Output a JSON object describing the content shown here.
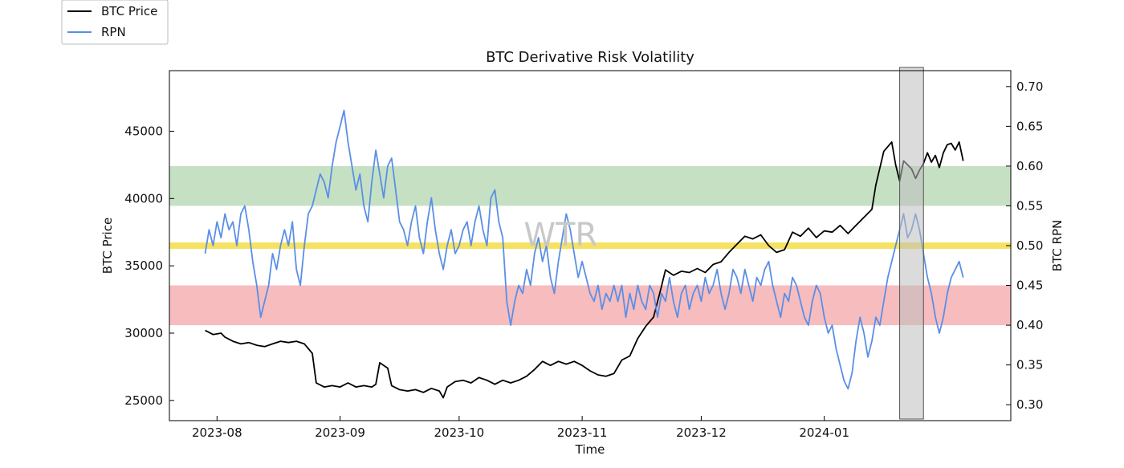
{
  "chart_data": {
    "type": "line",
    "title": "BTC Derivative Risk Volatility",
    "xlabel": "Time",
    "ylabel_left": "BTC Price",
    "ylabel_right": "BTC RPN",
    "watermark": "WTR",
    "x_ticks": [
      "2023-08",
      "2023-09",
      "2023-10",
      "2023-11",
      "2023-12",
      "2024-01"
    ],
    "x_range_days": [
      -12,
      200
    ],
    "ylim_left": [
      23500,
      49500
    ],
    "ylim_right": [
      0.28,
      0.72
    ],
    "left_ticks": [
      25000,
      30000,
      35000,
      40000,
      45000
    ],
    "right_ticks": [
      "0.30",
      "0.35",
      "0.40",
      "0.45",
      "0.50",
      "0.55",
      "0.60",
      "0.65",
      "0.70"
    ],
    "bands": [
      {
        "name": "high-risk-zone",
        "ymin": 0.55,
        "ymax": 0.6,
        "color": "#aed3ab",
        "opacity": 0.7
      },
      {
        "name": "neutral-line",
        "ymin": 0.496,
        "ymax": 0.504,
        "color": "#f2d82e",
        "opacity": 0.75
      },
      {
        "name": "low-risk-zone",
        "ymin": 0.4,
        "ymax": 0.45,
        "color": "#f2a0a2",
        "opacity": 0.7
      }
    ],
    "highlight_days": [
      172,
      178
    ],
    "legend": [
      {
        "label": "BTC Price",
        "color": "#000000"
      },
      {
        "label": "RPN",
        "color": "#5a8fe6"
      }
    ],
    "series": [
      {
        "name": "BTC Price",
        "axis": "left",
        "color": "#000000",
        "points": [
          [
            -3,
            30200
          ],
          [
            -1,
            29900
          ],
          [
            1,
            30000
          ],
          [
            2,
            29700
          ],
          [
            4,
            29400
          ],
          [
            6,
            29200
          ],
          [
            8,
            29300
          ],
          [
            10,
            29100
          ],
          [
            12,
            29000
          ],
          [
            14,
            29200
          ],
          [
            16,
            29400
          ],
          [
            18,
            29300
          ],
          [
            20,
            29400
          ],
          [
            22,
            29200
          ],
          [
            24,
            28500
          ],
          [
            25,
            26300
          ],
          [
            27,
            26000
          ],
          [
            29,
            26100
          ],
          [
            31,
            26000
          ],
          [
            33,
            26300
          ],
          [
            35,
            26000
          ],
          [
            37,
            26100
          ],
          [
            39,
            26000
          ],
          [
            40,
            26200
          ],
          [
            41,
            27800
          ],
          [
            43,
            27400
          ],
          [
            44,
            26100
          ],
          [
            46,
            25800
          ],
          [
            48,
            25700
          ],
          [
            50,
            25800
          ],
          [
            52,
            25600
          ],
          [
            54,
            25900
          ],
          [
            56,
            25700
          ],
          [
            57,
            25200
          ],
          [
            58,
            26000
          ],
          [
            60,
            26400
          ],
          [
            62,
            26500
          ],
          [
            64,
            26300
          ],
          [
            66,
            26700
          ],
          [
            68,
            26500
          ],
          [
            70,
            26200
          ],
          [
            72,
            26500
          ],
          [
            74,
            26300
          ],
          [
            76,
            26500
          ],
          [
            78,
            26800
          ],
          [
            80,
            27300
          ],
          [
            82,
            27900
          ],
          [
            84,
            27600
          ],
          [
            86,
            27900
          ],
          [
            88,
            27700
          ],
          [
            90,
            27900
          ],
          [
            92,
            27600
          ],
          [
            94,
            27200
          ],
          [
            96,
            26900
          ],
          [
            98,
            26800
          ],
          [
            100,
            27000
          ],
          [
            102,
            28000
          ],
          [
            104,
            28300
          ],
          [
            106,
            29600
          ],
          [
            108,
            30500
          ],
          [
            110,
            31200
          ],
          [
            112,
            33500
          ],
          [
            113,
            34700
          ],
          [
            115,
            34300
          ],
          [
            117,
            34600
          ],
          [
            119,
            34500
          ],
          [
            121,
            34800
          ],
          [
            123,
            34500
          ],
          [
            125,
            35100
          ],
          [
            127,
            35300
          ],
          [
            129,
            36000
          ],
          [
            131,
            36600
          ],
          [
            133,
            37200
          ],
          [
            135,
            37000
          ],
          [
            137,
            37300
          ],
          [
            139,
            36500
          ],
          [
            141,
            36000
          ],
          [
            143,
            36200
          ],
          [
            145,
            37500
          ],
          [
            147,
            37200
          ],
          [
            149,
            37800
          ],
          [
            151,
            37100
          ],
          [
            153,
            37600
          ],
          [
            155,
            37500
          ],
          [
            157,
            38000
          ],
          [
            159,
            37400
          ],
          [
            161,
            38000
          ],
          [
            163,
            38600
          ],
          [
            165,
            39200
          ],
          [
            166,
            41000
          ],
          [
            168,
            43500
          ],
          [
            170,
            44200
          ],
          [
            171,
            42500
          ],
          [
            172,
            41300
          ],
          [
            173,
            42800
          ],
          [
            175,
            42200
          ],
          [
            176,
            41500
          ],
          [
            177,
            42100
          ],
          [
            178,
            42600
          ],
          [
            179,
            43400
          ],
          [
            180,
            42700
          ],
          [
            181,
            43200
          ],
          [
            182,
            42300
          ],
          [
            183,
            43400
          ],
          [
            184,
            44000
          ],
          [
            185,
            44100
          ],
          [
            186,
            43600
          ],
          [
            187,
            44200
          ],
          [
            188,
            42800
          ]
        ]
      },
      {
        "name": "RPN",
        "axis": "right",
        "color": "#5a8fe6",
        "points": [
          [
            -3,
            0.49
          ],
          [
            -2,
            0.52
          ],
          [
            -1,
            0.5
          ],
          [
            0,
            0.53
          ],
          [
            1,
            0.51
          ],
          [
            2,
            0.54
          ],
          [
            3,
            0.52
          ],
          [
            4,
            0.53
          ],
          [
            5,
            0.5
          ],
          [
            6,
            0.54
          ],
          [
            7,
            0.55
          ],
          [
            8,
            0.52
          ],
          [
            9,
            0.48
          ],
          [
            10,
            0.45
          ],
          [
            11,
            0.41
          ],
          [
            12,
            0.43
          ],
          [
            13,
            0.45
          ],
          [
            14,
            0.49
          ],
          [
            15,
            0.47
          ],
          [
            16,
            0.5
          ],
          [
            17,
            0.52
          ],
          [
            18,
            0.5
          ],
          [
            19,
            0.53
          ],
          [
            20,
            0.47
          ],
          [
            21,
            0.45
          ],
          [
            22,
            0.5
          ],
          [
            23,
            0.54
          ],
          [
            24,
            0.55
          ],
          [
            25,
            0.57
          ],
          [
            26,
            0.59
          ],
          [
            27,
            0.58
          ],
          [
            28,
            0.56
          ],
          [
            29,
            0.6
          ],
          [
            30,
            0.63
          ],
          [
            31,
            0.65
          ],
          [
            32,
            0.67
          ],
          [
            33,
            0.63
          ],
          [
            34,
            0.6
          ],
          [
            35,
            0.57
          ],
          [
            36,
            0.59
          ],
          [
            37,
            0.55
          ],
          [
            38,
            0.53
          ],
          [
            39,
            0.58
          ],
          [
            40,
            0.62
          ],
          [
            41,
            0.59
          ],
          [
            42,
            0.56
          ],
          [
            43,
            0.6
          ],
          [
            44,
            0.61
          ],
          [
            45,
            0.57
          ],
          [
            46,
            0.53
          ],
          [
            47,
            0.52
          ],
          [
            48,
            0.5
          ],
          [
            49,
            0.53
          ],
          [
            50,
            0.55
          ],
          [
            51,
            0.51
          ],
          [
            52,
            0.49
          ],
          [
            53,
            0.53
          ],
          [
            54,
            0.56
          ],
          [
            55,
            0.52
          ],
          [
            56,
            0.49
          ],
          [
            57,
            0.47
          ],
          [
            58,
            0.5
          ],
          [
            59,
            0.52
          ],
          [
            60,
            0.49
          ],
          [
            61,
            0.5
          ],
          [
            62,
            0.52
          ],
          [
            63,
            0.53
          ],
          [
            64,
            0.5
          ],
          [
            65,
            0.53
          ],
          [
            66,
            0.55
          ],
          [
            67,
            0.52
          ],
          [
            68,
            0.5
          ],
          [
            69,
            0.56
          ],
          [
            70,
            0.57
          ],
          [
            71,
            0.53
          ],
          [
            72,
            0.51
          ],
          [
            73,
            0.43
          ],
          [
            74,
            0.4
          ],
          [
            75,
            0.43
          ],
          [
            76,
            0.45
          ],
          [
            77,
            0.44
          ],
          [
            78,
            0.47
          ],
          [
            79,
            0.45
          ],
          [
            80,
            0.49
          ],
          [
            81,
            0.51
          ],
          [
            82,
            0.48
          ],
          [
            83,
            0.5
          ],
          [
            84,
            0.46
          ],
          [
            85,
            0.44
          ],
          [
            86,
            0.48
          ],
          [
            87,
            0.51
          ],
          [
            88,
            0.54
          ],
          [
            89,
            0.52
          ],
          [
            90,
            0.49
          ],
          [
            91,
            0.46
          ],
          [
            92,
            0.48
          ],
          [
            93,
            0.46
          ],
          [
            94,
            0.44
          ],
          [
            95,
            0.43
          ],
          [
            96,
            0.45
          ],
          [
            97,
            0.42
          ],
          [
            98,
            0.44
          ],
          [
            99,
            0.43
          ],
          [
            100,
            0.45
          ],
          [
            101,
            0.43
          ],
          [
            102,
            0.45
          ],
          [
            103,
            0.41
          ],
          [
            104,
            0.44
          ],
          [
            105,
            0.42
          ],
          [
            106,
            0.45
          ],
          [
            107,
            0.43
          ],
          [
            108,
            0.42
          ],
          [
            109,
            0.45
          ],
          [
            110,
            0.44
          ],
          [
            111,
            0.41
          ],
          [
            112,
            0.44
          ],
          [
            113,
            0.43
          ],
          [
            114,
            0.46
          ],
          [
            115,
            0.43
          ],
          [
            116,
            0.41
          ],
          [
            117,
            0.44
          ],
          [
            118,
            0.45
          ],
          [
            119,
            0.42
          ],
          [
            120,
            0.44
          ],
          [
            121,
            0.45
          ],
          [
            122,
            0.43
          ],
          [
            123,
            0.46
          ],
          [
            124,
            0.44
          ],
          [
            125,
            0.45
          ],
          [
            126,
            0.47
          ],
          [
            127,
            0.44
          ],
          [
            128,
            0.42
          ],
          [
            129,
            0.44
          ],
          [
            130,
            0.47
          ],
          [
            131,
            0.46
          ],
          [
            132,
            0.44
          ],
          [
            133,
            0.47
          ],
          [
            134,
            0.45
          ],
          [
            135,
            0.43
          ],
          [
            136,
            0.46
          ],
          [
            137,
            0.45
          ],
          [
            138,
            0.47
          ],
          [
            139,
            0.48
          ],
          [
            140,
            0.45
          ],
          [
            141,
            0.43
          ],
          [
            142,
            0.41
          ],
          [
            143,
            0.44
          ],
          [
            144,
            0.43
          ],
          [
            145,
            0.46
          ],
          [
            146,
            0.45
          ],
          [
            147,
            0.43
          ],
          [
            148,
            0.41
          ],
          [
            149,
            0.4
          ],
          [
            150,
            0.43
          ],
          [
            151,
            0.45
          ],
          [
            152,
            0.44
          ],
          [
            153,
            0.41
          ],
          [
            154,
            0.39
          ],
          [
            155,
            0.4
          ],
          [
            156,
            0.37
          ],
          [
            157,
            0.35
          ],
          [
            158,
            0.33
          ],
          [
            159,
            0.32
          ],
          [
            160,
            0.34
          ],
          [
            161,
            0.38
          ],
          [
            162,
            0.41
          ],
          [
            163,
            0.39
          ],
          [
            164,
            0.36
          ],
          [
            165,
            0.38
          ],
          [
            166,
            0.41
          ],
          [
            167,
            0.4
          ],
          [
            168,
            0.43
          ],
          [
            169,
            0.46
          ],
          [
            170,
            0.48
          ],
          [
            171,
            0.5
          ],
          [
            172,
            0.52
          ],
          [
            173,
            0.54
          ],
          [
            174,
            0.51
          ],
          [
            175,
            0.52
          ],
          [
            176,
            0.54
          ],
          [
            177,
            0.52
          ],
          [
            178,
            0.49
          ],
          [
            179,
            0.46
          ],
          [
            180,
            0.44
          ],
          [
            181,
            0.41
          ],
          [
            182,
            0.39
          ],
          [
            183,
            0.41
          ],
          [
            184,
            0.44
          ],
          [
            185,
            0.46
          ],
          [
            186,
            0.47
          ],
          [
            187,
            0.48
          ],
          [
            188,
            0.46
          ]
        ]
      }
    ]
  }
}
